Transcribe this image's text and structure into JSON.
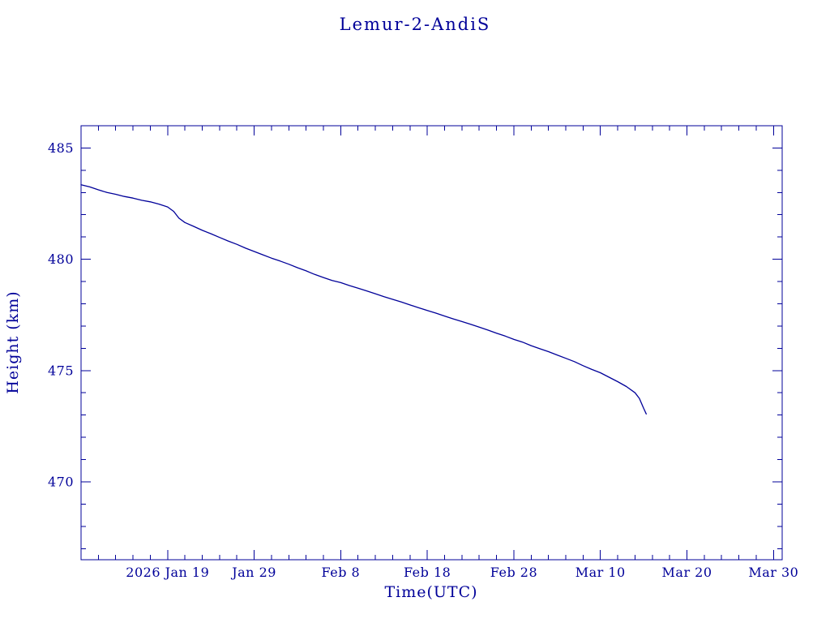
{
  "page": {
    "background": "#ffffff"
  },
  "chart_data": {
    "type": "line",
    "title": "Lemur-2-AndiS",
    "xlabel": "Time(UTC)",
    "ylabel": "Height (km)",
    "accent_color": "#000099",
    "line_color": "#000099",
    "background_color": "#ffffff",
    "grid": false,
    "legend": false,
    "x_unit": "days, day 0 = left edge (approx 2026 Jan 9), ticks every 10 days",
    "xlim": [
      0,
      81
    ],
    "ylim": [
      466.5,
      486.0
    ],
    "x_major_ticks": [
      {
        "day": 10,
        "label": "2026 Jan 19"
      },
      {
        "day": 20,
        "label": "Jan 29"
      },
      {
        "day": 30,
        "label": "Feb 8"
      },
      {
        "day": 40,
        "label": "Feb 18"
      },
      {
        "day": 50,
        "label": "Feb 28"
      },
      {
        "day": 60,
        "label": "Mar 10"
      },
      {
        "day": 70,
        "label": "Mar 20"
      },
      {
        "day": 80,
        "label": "Mar 30"
      }
    ],
    "x_minor_step": 2,
    "y_major_ticks": [
      {
        "value": 470,
        "label": "470"
      },
      {
        "value": 475,
        "label": "475"
      },
      {
        "value": 480,
        "label": "480"
      },
      {
        "value": 485,
        "label": "485"
      }
    ],
    "y_minor_step": 1,
    "series": [
      {
        "name": "height_km",
        "points": [
          [
            0,
            483.35
          ],
          [
            1,
            483.25
          ],
          [
            2,
            483.12
          ],
          [
            3,
            483.0
          ],
          [
            4,
            482.92
          ],
          [
            5,
            482.82
          ],
          [
            6,
            482.75
          ],
          [
            7,
            482.65
          ],
          [
            8,
            482.58
          ],
          [
            9,
            482.48
          ],
          [
            10,
            482.35
          ],
          [
            10.7,
            482.15
          ],
          [
            11.3,
            481.85
          ],
          [
            12,
            481.65
          ],
          [
            13,
            481.48
          ],
          [
            14,
            481.3
          ],
          [
            15,
            481.15
          ],
          [
            16,
            480.98
          ],
          [
            17,
            480.82
          ],
          [
            18,
            480.67
          ],
          [
            19,
            480.5
          ],
          [
            20,
            480.35
          ],
          [
            21,
            480.2
          ],
          [
            22,
            480.05
          ],
          [
            23,
            479.92
          ],
          [
            24,
            479.78
          ],
          [
            25,
            479.62
          ],
          [
            26,
            479.48
          ],
          [
            27,
            479.32
          ],
          [
            28,
            479.18
          ],
          [
            29,
            479.05
          ],
          [
            30,
            478.95
          ],
          [
            31,
            478.82
          ],
          [
            32,
            478.7
          ],
          [
            33,
            478.58
          ],
          [
            34,
            478.45
          ],
          [
            35,
            478.32
          ],
          [
            36,
            478.2
          ],
          [
            37,
            478.08
          ],
          [
            38,
            477.95
          ],
          [
            39,
            477.82
          ],
          [
            40,
            477.7
          ],
          [
            41,
            477.58
          ],
          [
            42,
            477.45
          ],
          [
            43,
            477.32
          ],
          [
            44,
            477.2
          ],
          [
            45,
            477.08
          ],
          [
            46,
            476.95
          ],
          [
            47,
            476.82
          ],
          [
            48,
            476.68
          ],
          [
            49,
            476.55
          ],
          [
            50,
            476.4
          ],
          [
            51,
            476.28
          ],
          [
            52,
            476.12
          ],
          [
            53,
            475.98
          ],
          [
            54,
            475.85
          ],
          [
            55,
            475.7
          ],
          [
            56,
            475.55
          ],
          [
            57,
            475.4
          ],
          [
            58,
            475.22
          ],
          [
            59,
            475.05
          ],
          [
            60,
            474.9
          ],
          [
            61,
            474.7
          ],
          [
            62,
            474.5
          ],
          [
            63,
            474.28
          ],
          [
            64,
            474.0
          ],
          [
            64.5,
            473.75
          ],
          [
            65,
            473.3
          ],
          [
            65.3,
            473.05
          ]
        ]
      }
    ]
  }
}
